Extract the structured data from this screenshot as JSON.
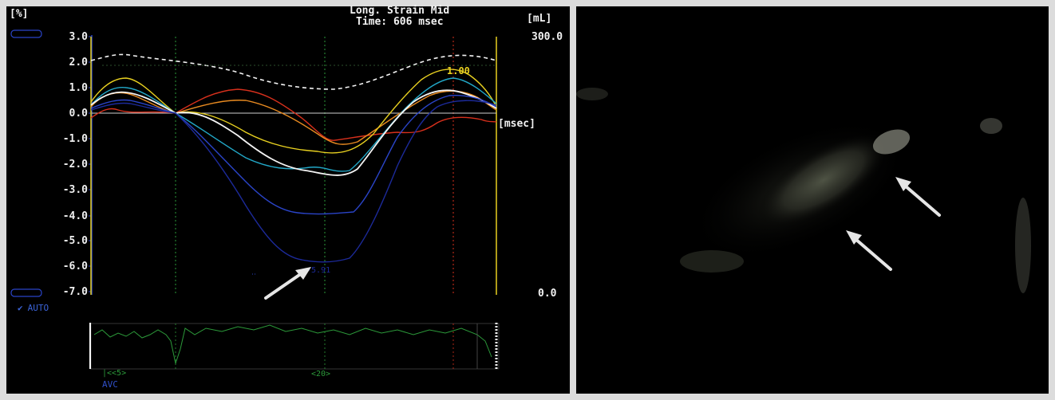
{
  "header": {
    "title": "Long. Strain Mid",
    "time": "Time: 606 msec"
  },
  "units": {
    "left": "[%]",
    "right": "[mL]",
    "right_mid": "[msec]"
  },
  "right_axis": {
    "top": "300.0",
    "bottom": "0.0"
  },
  "y_ticks": [
    "3.0",
    "2.0",
    "1.0",
    "0.0",
    "-1.0",
    "-2.0",
    "-3.0",
    "-4.0",
    "-5.0",
    "-6.0",
    "-7.0"
  ],
  "marker_label": "1.00",
  "auto_label": "AUTO",
  "avc_label": "AVC",
  "bottom_nav": {
    "left": "|<<5>",
    "mid": "<20>"
  },
  "colors": {
    "red": "#d8301c",
    "orange": "#e88a20",
    "yellow": "#e8d020",
    "cyan": "#22a8c8",
    "white": "#f4f4f4",
    "navy": "#1c2a9a",
    "blue": "#2a44c8",
    "ecg": "#2c9a3a"
  },
  "icons": [
    "check-icon",
    "arrow-icon"
  ]
}
